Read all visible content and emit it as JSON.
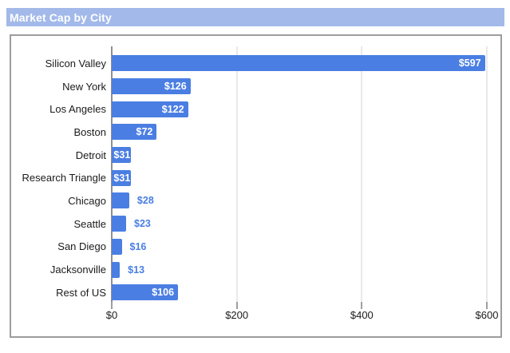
{
  "header": {
    "title": "Market Cap by City"
  },
  "chart_data": {
    "type": "bar",
    "orientation": "horizontal",
    "title": "Market Cap by City",
    "categories": [
      "Silicon Valley",
      "New York",
      "Los Angeles",
      "Boston",
      "Detroit",
      "Research Triangle",
      "Chicago",
      "Seattle",
      "San Diego",
      "Jacksonville",
      "Rest of US"
    ],
    "values": [
      597,
      126,
      122,
      72,
      31,
      31,
      28,
      23,
      16,
      13,
      106
    ],
    "value_labels": [
      "$597",
      "$126",
      "$122",
      "$72",
      "$31",
      "$31",
      "$28",
      "$23",
      "$16",
      "$13",
      "$106"
    ],
    "xlabel": "",
    "ylabel": "",
    "xlim": [
      0,
      600
    ],
    "x_ticks": {
      "values": [
        0,
        200,
        400,
        600
      ],
      "labels": [
        "$0",
        "$200",
        "$400",
        "$600"
      ]
    },
    "grid": true,
    "legend_position": "none",
    "colors": {
      "bar": "#4a7ee2",
      "value_label_inside": "#ffffff",
      "value_label_outside": "#4a7ee2",
      "header_bg": "#a2b9e9",
      "header_text": "#ffffff",
      "gridline": "#e9e9e9",
      "baseline": "#909090",
      "tick": "#9f9f9f",
      "axis_text": "#1b1b1b",
      "category_text": "#1b1b1b",
      "chart_border": "#9d9d9d"
    }
  }
}
